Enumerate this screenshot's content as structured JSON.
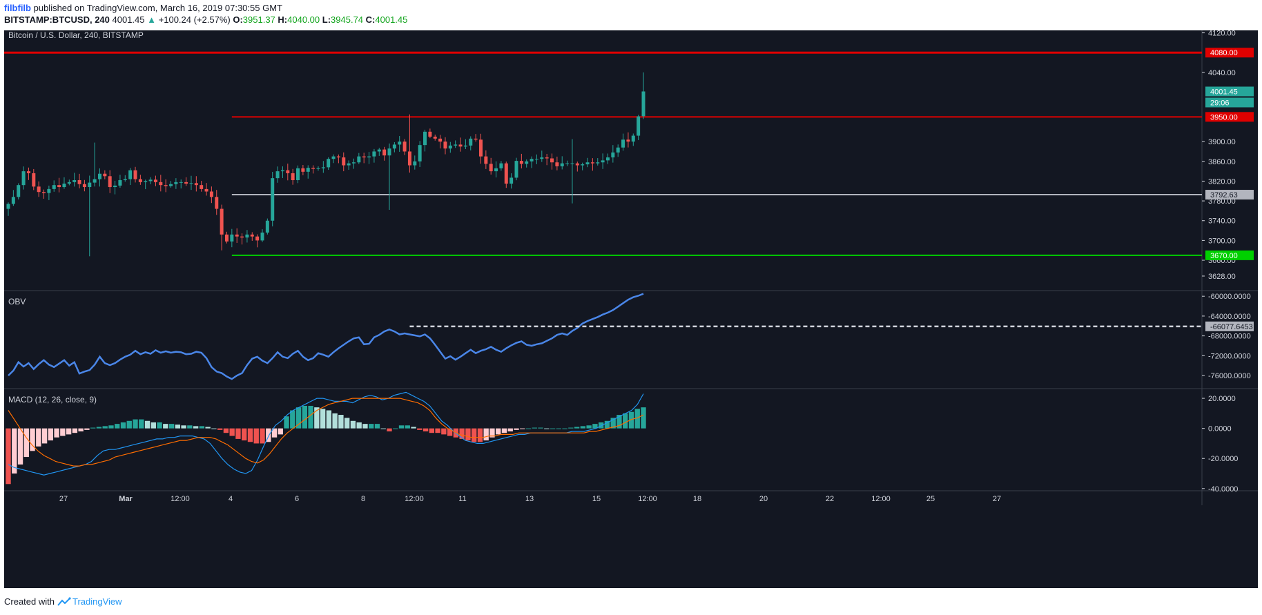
{
  "header": {
    "author": "filbfilb",
    "published_text": " published on TradingView.com, March 16, 2019 07:30:55 GMT",
    "symbol": "BITSTAMP:BTCUSD, 240",
    "last": "4001.45",
    "change": "+100.24 (+2.57%)",
    "o_label": "O:",
    "o": "3951.37",
    "h_label": "H:",
    "h": "4040.00",
    "l_label": "L:",
    "l": "3945.74",
    "c_label": "C:",
    "c": "4001.45"
  },
  "footer": {
    "created_with": "Created with",
    "brand": "TradingView"
  },
  "colors": {
    "bg": "#131722",
    "up": "#26a69a",
    "down": "#ef5350",
    "obv": "#4a86e8",
    "macd": "#2196f3",
    "signal": "#ff6d00",
    "resistance": "#e00000",
    "support": "#00d000",
    "pivot": "#b2b5be"
  },
  "chart_data": [
    {
      "type": "candlestick",
      "title": "Bitcoin / U.S. Dollar, 240, BITSTAMP",
      "ylim": [
        3600,
        4125
      ],
      "y_ticks": [
        "4120.00",
        "4040.00",
        "3900.00",
        "3860.00",
        "3820.00",
        "3780.00",
        "3740.00",
        "3700.00",
        "3660.00",
        "3628.00"
      ],
      "x_ticks": [
        "27",
        "Mar",
        "12:00",
        "4",
        "6",
        "8",
        "12:00",
        "11",
        "13",
        "15",
        "12:00",
        "18",
        "20",
        "22",
        "12:00",
        "25",
        "27"
      ],
      "horizontal_lines": [
        {
          "label": "4080.00",
          "value": 4080,
          "color": "#e00000"
        },
        {
          "label": "3950.00",
          "value": 3950,
          "color": "#e00000"
        },
        {
          "label": "3792.63",
          "value": 3792.63,
          "color": "#b2b5be"
        },
        {
          "label": "3670.00",
          "value": 3670,
          "color": "#00d000"
        }
      ],
      "last_price_label": "4001.45",
      "countdown_label": "29:06",
      "closes": [
        3774,
        3788,
        3812,
        3840,
        3836,
        3809,
        3798,
        3796,
        3804,
        3812,
        3808,
        3815,
        3818,
        3822,
        3814,
        3808,
        3817,
        3824,
        3835,
        3830,
        3808,
        3811,
        3822,
        3824,
        3842,
        3824,
        3818,
        3820,
        3823,
        3818,
        3812,
        3810,
        3814,
        3818,
        3818,
        3815,
        3816,
        3812,
        3804,
        3799,
        3788,
        3764,
        3712,
        3698,
        3712,
        3708,
        3706,
        3712,
        3708,
        3700,
        3716,
        3740,
        3826,
        3840,
        3842,
        3836,
        3822,
        3846,
        3839,
        3847,
        3845,
        3846,
        3848,
        3865,
        3870,
        3868,
        3852,
        3856,
        3858,
        3870,
        3868,
        3870,
        3880,
        3884,
        3872,
        3886,
        3894,
        3900,
        3880,
        3852,
        3860,
        3893,
        3920,
        3910,
        3906,
        3900,
        3886,
        3892,
        3894,
        3890,
        3892,
        3906,
        3904,
        3870,
        3855,
        3840,
        3846,
        3856,
        3815,
        3827,
        3861,
        3855,
        3860,
        3865,
        3865,
        3868,
        3866,
        3858,
        3850,
        3856,
        3856,
        3856,
        3852,
        3854,
        3858,
        3856,
        3858,
        3862,
        3868,
        3878,
        3888,
        3904,
        3900,
        3912,
        3951,
        4001.45
      ],
      "last_candle": {
        "open": 3951.37,
        "high": 4040.0,
        "low": 3945.74,
        "close": 4001.45
      }
    },
    {
      "type": "line",
      "title": "OBV",
      "ylim": [
        -78500,
        -59000
      ],
      "y_ticks": [
        "-60000.0000",
        "-64000.0000",
        "-68000.0000",
        "-72000.0000",
        "-76000.0000"
      ],
      "level_line": {
        "label": "-66077.6453",
        "value": -66077.6453
      },
      "series": [
        {
          "values": [
            -76000,
            -75000,
            -73300,
            -74200,
            -73500,
            -74700,
            -73700,
            -72900,
            -73800,
            -74300,
            -73600,
            -72900,
            -74000,
            -73300,
            -75600,
            -75200,
            -74900,
            -73800,
            -72200,
            -73500,
            -73900,
            -73500,
            -72800,
            -72200,
            -71800,
            -71000,
            -71700,
            -71300,
            -71600,
            -70900,
            -71400,
            -71100,
            -71400,
            -71200,
            -71300,
            -71700,
            -71600,
            -71200,
            -71400,
            -72500,
            -74300,
            -75200,
            -75500,
            -76200,
            -76700,
            -76000,
            -75500,
            -73900,
            -72600,
            -72200,
            -73000,
            -73500,
            -72500,
            -71300,
            -72200,
            -72500,
            -71600,
            -71000,
            -72200,
            -72900,
            -72500,
            -71500,
            -71800,
            -72200,
            -71300,
            -70500,
            -69800,
            -69100,
            -68500,
            -68300,
            -69700,
            -69600,
            -68300,
            -67800,
            -67100,
            -66700,
            -67100,
            -67700,
            -67500,
            -67700,
            -67900,
            -68100,
            -67700,
            -68500,
            -69800,
            -71200,
            -72600,
            -72100,
            -72800,
            -72200,
            -71500,
            -70800,
            -71500,
            -71000,
            -70700,
            -70200,
            -70800,
            -71200,
            -70500,
            -69900,
            -69400,
            -69100,
            -69800,
            -70000,
            -69700,
            -69500,
            -69000,
            -68500,
            -67800,
            -67500,
            -67800,
            -67000,
            -66400,
            -65500,
            -65000,
            -64600,
            -64200,
            -63700,
            -63300,
            -62800,
            -62100,
            -61400,
            -60700,
            -60200,
            -59900,
            -59500
          ]
        }
      ]
    },
    {
      "type": "bar+line",
      "title": "MACD (12, 26, close, 9)",
      "ylim": [
        -41,
        26
      ],
      "y_ticks": [
        "20.0000",
        "0.0000",
        "-20.0000",
        "-40.0000"
      ],
      "histogram": [
        -37,
        -30,
        -24,
        -19,
        -15,
        -12,
        -10,
        -8,
        -6,
        -5,
        -4,
        -3,
        -2,
        -1,
        0.5,
        1,
        1.5,
        2,
        3,
        4,
        5,
        6,
        6,
        5,
        4,
        4,
        3,
        3,
        2.5,
        2,
        2,
        1.5,
        1.5,
        1,
        0,
        -1,
        -3,
        -5,
        -7,
        -8,
        -9,
        -10,
        -10,
        -9,
        -6,
        -4,
        8,
        12,
        14,
        15,
        15,
        14,
        13,
        12,
        10,
        9,
        7,
        5,
        4,
        3,
        3,
        3,
        0,
        -2,
        0,
        2,
        2,
        1,
        -1,
        -2,
        -3,
        -3,
        -4,
        -5,
        -6,
        -7,
        -8,
        -9,
        -9,
        -8,
        -6,
        -4,
        -3,
        -2,
        -1,
        -0.5,
        0,
        0.5,
        0.5,
        0,
        0,
        0,
        0,
        0.5,
        1,
        1.5,
        2,
        3,
        4,
        5,
        7,
        9,
        10,
        11,
        13,
        14
      ],
      "series": [
        {
          "values": [
            -24,
            -26,
            -27,
            -28,
            -29,
            -30,
            -31,
            -30,
            -29,
            -28,
            -27,
            -26,
            -25,
            -24,
            -22,
            -18,
            -15,
            -14,
            -14,
            -13,
            -12,
            -11,
            -10,
            -9,
            -8,
            -7,
            -7,
            -6,
            -6,
            -5,
            -5,
            -5,
            -6,
            -7,
            -10,
            -15,
            -20,
            -24,
            -27,
            -29,
            -30,
            -28,
            -21,
            -12,
            -4,
            2,
            5,
            9,
            12,
            14,
            16,
            18,
            20,
            20,
            19,
            18,
            18,
            18,
            17,
            19,
            21,
            22,
            21,
            19,
            20,
            22,
            23,
            24,
            22,
            20,
            18,
            15,
            10,
            5,
            2,
            -2,
            -5,
            -8,
            -9,
            -10,
            -10,
            -9,
            -8,
            -7,
            -6,
            -5,
            -4,
            -4,
            -3,
            -3,
            -3,
            -3,
            -3,
            -3,
            -3,
            -2,
            -2,
            -2,
            -1,
            0,
            2,
            4,
            6,
            8,
            10,
            12,
            16,
            23
          ]
        },
        {
          "values": [
            12,
            6,
            0,
            -6,
            -11,
            -15,
            -18,
            -20,
            -22,
            -23,
            -24,
            -25,
            -25,
            -24,
            -24,
            -23,
            -22,
            -21,
            -19,
            -18,
            -17,
            -16,
            -15,
            -14,
            -13,
            -12,
            -11,
            -10,
            -9,
            -8,
            -8,
            -7,
            -6,
            -6,
            -6,
            -7,
            -9,
            -11,
            -14,
            -17,
            -20,
            -22,
            -23,
            -21,
            -17,
            -12,
            -7,
            -3,
            0,
            3,
            6,
            9,
            12,
            14,
            16,
            17,
            18,
            19,
            20,
            20,
            20,
            20,
            20,
            20,
            20,
            20,
            20,
            19,
            18,
            17,
            15,
            12,
            7,
            3,
            0,
            -2,
            -4,
            -5,
            -6,
            -6,
            -6,
            -5,
            -5,
            -4,
            -4,
            -4,
            -3,
            -3,
            -3,
            -3,
            -3,
            -3,
            -3,
            -3,
            -3,
            -3,
            -3,
            -3,
            -2,
            -2,
            -1,
            0,
            1,
            2,
            4,
            6,
            7,
            9
          ]
        }
      ]
    }
  ],
  "x_axis_ticks": [
    "27",
    "Mar",
    "12:00",
    "4",
    "6",
    "8",
    "12:00",
    "11",
    "13",
    "15",
    "12:00",
    "18",
    "20",
    "22",
    "12:00",
    "25",
    "27"
  ]
}
